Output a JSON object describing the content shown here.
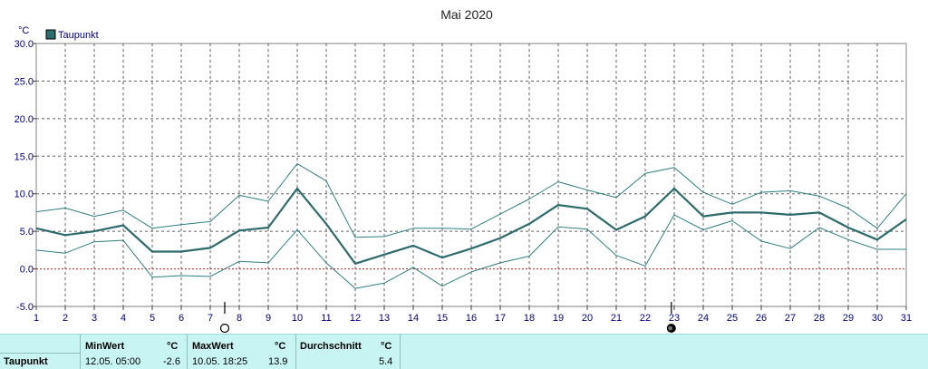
{
  "chart_data": {
    "type": "line",
    "title": "Mai 2020",
    "yunit": "°C",
    "ylim": [
      -5,
      30
    ],
    "yticks": [
      "-5.0",
      "0.0",
      "5.0",
      "10.0",
      "15.0",
      "20.0",
      "25.0",
      "30.0"
    ],
    "x": [
      1,
      2,
      3,
      4,
      5,
      6,
      7,
      8,
      9,
      10,
      11,
      12,
      13,
      14,
      15,
      16,
      17,
      18,
      19,
      20,
      21,
      22,
      23,
      24,
      25,
      26,
      27,
      28,
      29,
      30,
      31
    ],
    "grid": true,
    "legend": "top-left",
    "series": [
      {
        "name": "Taupunkt",
        "color": "#2e6b6b",
        "values": [
          5.4,
          4.5,
          5.0,
          5.8,
          2.3,
          2.3,
          2.8,
          5.1,
          5.5,
          10.7,
          6.0,
          0.7,
          1.9,
          3.1,
          1.5,
          2.7,
          4.1,
          6.0,
          8.5,
          8.0,
          5.2,
          7.0,
          10.7,
          7.0,
          7.5,
          7.5,
          7.2,
          7.5,
          5.5,
          3.9,
          6.6
        ]
      },
      {
        "color": "#2e7f7f",
        "values": [
          7.6,
          8.1,
          7.0,
          7.8,
          5.4,
          5.9,
          6.3,
          9.8,
          9.0,
          14.0,
          11.7,
          4.2,
          4.3,
          5.4,
          5.4,
          5.3,
          7.3,
          9.3,
          11.6,
          10.5,
          9.5,
          12.7,
          13.5,
          10.2,
          8.6,
          10.2,
          10.4,
          9.7,
          8.1,
          5.4,
          10.0
        ]
      },
      {
        "color": "#2e7f7f",
        "values": [
          2.5,
          2.1,
          3.6,
          3.8,
          -1.1,
          -0.9,
          -1.0,
          1.0,
          0.8,
          5.2,
          0.8,
          -2.6,
          -1.9,
          0.2,
          -2.3,
          -0.4,
          0.8,
          1.7,
          5.6,
          5.3,
          1.8,
          0.4,
          7.2,
          5.2,
          6.4,
          3.7,
          2.7,
          5.5,
          3.9,
          2.6,
          2.6
        ]
      }
    ],
    "moon_phases": [
      {
        "day": 7.5,
        "phase": "full-moon"
      },
      {
        "day": 22.9,
        "phase": "new-moon"
      }
    ]
  },
  "stats": {
    "row_label": "Taupunkt",
    "min": {
      "header": "MinWert",
      "unit": "°C",
      "time": "12.05.  05:00",
      "value": "-2.6"
    },
    "max": {
      "header": "MaxWert",
      "unit": "°C",
      "time": "10.05.  18:25",
      "value": "13.9"
    },
    "avg": {
      "header": "Durchschnitt",
      "unit": "°C",
      "value": "5.4"
    }
  }
}
